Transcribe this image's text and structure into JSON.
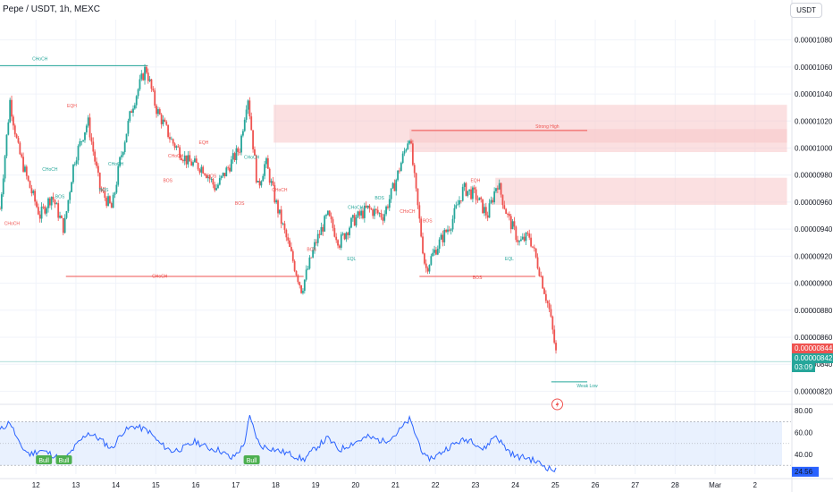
{
  "header": {
    "symbol_line": "Pepe / USDT, 1h, MEXC",
    "currency": "USDT"
  },
  "price_tags": {
    "ask": "0.00000844",
    "bid": "0.00000842",
    "countdown": "03:09"
  },
  "colors": {
    "up": "#26a69a",
    "down": "#ef5350",
    "rsi": "#2962ff",
    "bear_zone": "#f7c6c9",
    "rsi_band": "#dbe8fd",
    "bull_label": "#4caf50"
  },
  "chart_data": [
    {
      "type": "candlestick",
      "title": "Pepe / USDT, 1h, MEXC",
      "yticks": [
        "0.00000820",
        "0.00000840",
        "0.00000860",
        "0.00000880",
        "0.00000900",
        "0.00000920",
        "0.00000940",
        "0.00000960",
        "0.00000980",
        "0.00001000",
        "0.00001020",
        "0.00001040",
        "0.00001060",
        "0.00001080"
      ],
      "ylim": [
        8.13e-06,
        1.095e-05
      ],
      "xticks": [
        "12",
        "13",
        "14",
        "15",
        "16",
        "17",
        "18",
        "19",
        "20",
        "21",
        "22",
        "23",
        "24",
        "25",
        "26",
        "27",
        "28",
        "Mar",
        "2"
      ],
      "x_tick_days": [
        12,
        13,
        14,
        15,
        16,
        17,
        18,
        19,
        20,
        21,
        22,
        23,
        24,
        25,
        26,
        27,
        28,
        29,
        30
      ],
      "xlim_days": [
        11.1,
        30.9
      ],
      "last_price": 8.42e-06,
      "price_anchors": [
        [
          11.1,
          9.55e-06
        ],
        [
          11.35,
          1.035e-05
        ],
        [
          11.55,
          1e-05
        ],
        [
          11.8,
          9.75e-06
        ],
        [
          12.1,
          9.5e-06
        ],
        [
          12.4,
          9.65e-06
        ],
        [
          12.7,
          9.4e-06
        ],
        [
          12.95,
          9.9e-06
        ],
        [
          13.3,
          1.02e-05
        ],
        [
          13.6,
          9.7e-06
        ],
        [
          13.9,
          9.55e-06
        ],
        [
          14.1,
          9.9e-06
        ],
        [
          14.4,
          1.03e-05
        ],
        [
          14.75,
          1.06e-05
        ],
        [
          15.0,
          1.03e-05
        ],
        [
          15.4,
          1.005e-05
        ],
        [
          15.8,
          9.9e-06
        ],
        [
          16.2,
          9.85e-06
        ],
        [
          16.5,
          9.7e-06
        ],
        [
          16.8,
          9.85e-06
        ],
        [
          17.1,
          1e-05
        ],
        [
          17.3,
          1.04e-05
        ],
        [
          17.55,
          9.7e-06
        ],
        [
          17.75,
          9.9e-06
        ],
        [
          18.0,
          9.6e-06
        ],
        [
          18.3,
          9.3e-06
        ],
        [
          18.65,
          8.95e-06
        ],
        [
          19.0,
          9.3e-06
        ],
        [
          19.3,
          9.5e-06
        ],
        [
          19.6,
          9.3e-06
        ],
        [
          19.9,
          9.45e-06
        ],
        [
          20.3,
          9.55e-06
        ],
        [
          20.7,
          9.5e-06
        ],
        [
          21.0,
          9.75e-06
        ],
        [
          21.35,
          1.01e-05
        ],
        [
          21.5,
          9.7e-06
        ],
        [
          21.75,
          9.1e-06
        ],
        [
          22.0,
          9.25e-06
        ],
        [
          22.4,
          9.45e-06
        ],
        [
          22.7,
          9.7e-06
        ],
        [
          23.0,
          9.65e-06
        ],
        [
          23.3,
          9.5e-06
        ],
        [
          23.55,
          9.75e-06
        ],
        [
          23.8,
          9.5e-06
        ],
        [
          24.1,
          9.3e-06
        ],
        [
          24.35,
          9.35e-06
        ],
        [
          24.6,
          9.1e-06
        ],
        [
          24.85,
          8.8e-06
        ],
        [
          25.05,
          8.42e-06
        ]
      ],
      "rsi": {
        "yticks": [
          "40.00",
          "60.00",
          "80.00"
        ],
        "ylim": [
          22,
          81
        ],
        "upper_band": 70,
        "mid": 50,
        "lower_band": 30,
        "last_value": "24.56",
        "anchors": [
          [
            11.1,
            62
          ],
          [
            11.35,
            70
          ],
          [
            11.6,
            48
          ],
          [
            11.85,
            40
          ],
          [
            12.1,
            44
          ],
          [
            12.4,
            40
          ],
          [
            12.7,
            34
          ],
          [
            13.0,
            48
          ],
          [
            13.3,
            60
          ],
          [
            13.6,
            54
          ],
          [
            13.9,
            45
          ],
          [
            14.15,
            60
          ],
          [
            14.45,
            66
          ],
          [
            14.8,
            62
          ],
          [
            15.1,
            50
          ],
          [
            15.4,
            43
          ],
          [
            15.7,
            46
          ],
          [
            16.0,
            52
          ],
          [
            16.3,
            46
          ],
          [
            16.6,
            44
          ],
          [
            16.9,
            36
          ],
          [
            17.2,
            48
          ],
          [
            17.35,
            74
          ],
          [
            17.6,
            48
          ],
          [
            17.85,
            46
          ],
          [
            18.1,
            43
          ],
          [
            18.4,
            40
          ],
          [
            18.7,
            35
          ],
          [
            19.0,
            46
          ],
          [
            19.3,
            55
          ],
          [
            19.6,
            44
          ],
          [
            19.9,
            50
          ],
          [
            20.3,
            56
          ],
          [
            20.7,
            52
          ],
          [
            21.0,
            58
          ],
          [
            21.35,
            72
          ],
          [
            21.55,
            54
          ],
          [
            21.75,
            36
          ],
          [
            22.0,
            38
          ],
          [
            22.3,
            46
          ],
          [
            22.6,
            52
          ],
          [
            22.9,
            54
          ],
          [
            23.2,
            44
          ],
          [
            23.5,
            58
          ],
          [
            23.75,
            46
          ],
          [
            24.0,
            38
          ],
          [
            24.3,
            37
          ],
          [
            24.6,
            32
          ],
          [
            24.8,
            28
          ],
          [
            25.05,
            24.56
          ]
        ]
      },
      "rsi_labels": [
        "Bull",
        "Bull",
        "Bull"
      ],
      "rsi_label_days": [
        12.2,
        12.7,
        17.4
      ],
      "annotations": [
        {
          "text": "CHoCH",
          "day": 12.1,
          "price": 1.065e-05,
          "color": "#26a69a"
        },
        {
          "text": "CHoCH",
          "day": 15.1,
          "price": 9.04e-06,
          "color": "#ef5350"
        },
        {
          "text": "BOS",
          "day": 23.05,
          "price": 9.03e-06,
          "color": "#ef5350"
        },
        {
          "text": "Strong High",
          "day": 24.8,
          "price": 1.015e-05,
          "color": "#ef5350"
        },
        {
          "text": "Weak Low",
          "day": 25.8,
          "price": 8.23e-06,
          "color": "#26a69a"
        },
        {
          "text": "EQH",
          "day": 12.9,
          "price": 1.03e-05,
          "color": "#ef5350"
        },
        {
          "text": "EQH",
          "day": 16.2,
          "price": 1.003e-05,
          "color": "#ef5350"
        },
        {
          "text": "EQH",
          "day": 23.0,
          "price": 9.75e-06,
          "color": "#ef5350"
        },
        {
          "text": "EQL",
          "day": 19.9,
          "price": 9.17e-06,
          "color": "#26a69a"
        },
        {
          "text": "EQL",
          "day": 23.85,
          "price": 9.17e-06,
          "color": "#26a69a"
        },
        {
          "text": "CHoCH",
          "day": 11.4,
          "price": 9.43e-06,
          "color": "#ef5350"
        },
        {
          "text": "CHoCH",
          "day": 12.35,
          "price": 9.83e-06,
          "color": "#26a69a"
        },
        {
          "text": "CHoCH",
          "day": 14.0,
          "price": 9.87e-06,
          "color": "#26a69a"
        },
        {
          "text": "CHoCH",
          "day": 15.5,
          "price": 9.93e-06,
          "color": "#ef5350"
        },
        {
          "text": "CHoCH",
          "day": 17.4,
          "price": 9.92e-06,
          "color": "#26a69a"
        },
        {
          "text": "CHoCH",
          "day": 18.1,
          "price": 9.68e-06,
          "color": "#ef5350"
        },
        {
          "text": "CHoCH",
          "day": 20.0,
          "price": 9.55e-06,
          "color": "#26a69a"
        },
        {
          "text": "CHoCH",
          "day": 21.3,
          "price": 9.52e-06,
          "color": "#ef5350"
        },
        {
          "text": "BOS",
          "day": 12.6,
          "price": 9.63e-06,
          "color": "#26a69a"
        },
        {
          "text": "BOS",
          "day": 13.7,
          "price": 9.68e-06,
          "color": "#26a69a"
        },
        {
          "text": "BOS",
          "day": 15.3,
          "price": 9.75e-06,
          "color": "#ef5350"
        },
        {
          "text": "BOS",
          "day": 16.4,
          "price": 9.78e-06,
          "color": "#ef5350"
        },
        {
          "text": "BOS",
          "day": 17.1,
          "price": 9.58e-06,
          "color": "#ef5350"
        },
        {
          "text": "BOS",
          "day": 18.9,
          "price": 9.24e-06,
          "color": "#ef5350"
        },
        {
          "text": "BOS",
          "day": 20.6,
          "price": 9.62e-06,
          "color": "#26a69a"
        },
        {
          "text": "BOS",
          "day": 21.8,
          "price": 9.45e-06,
          "color": "#ef5350"
        }
      ],
      "lines": [
        {
          "d1": 11.1,
          "d2": 14.8,
          "price": 1.061e-05,
          "color": "#26a69a"
        },
        {
          "d1": 12.75,
          "d2": 18.7,
          "price": 9.05e-06,
          "color": "#ef5350"
        },
        {
          "d1": 21.6,
          "d2": 24.5,
          "price": 9.05e-06,
          "color": "#ef5350"
        },
        {
          "d1": 21.4,
          "d2": 25.8,
          "price": 1.013e-05,
          "color": "#ef5350"
        },
        {
          "d1": 24.9,
          "d2": 25.8,
          "price": 8.27e-06,
          "color": "#26a69a"
        }
      ],
      "zones": [
        {
          "d1": 17.95,
          "d2": 30.8,
          "top": 1.032e-05,
          "bottom": 1.004e-05
        },
        {
          "d1": 21.35,
          "d2": 30.8,
          "top": 1.014e-05,
          "bottom": 9.97e-06
        },
        {
          "d1": 23.5,
          "d2": 30.8,
          "top": 9.78e-06,
          "bottom": 9.58e-06
        }
      ]
    }
  ]
}
